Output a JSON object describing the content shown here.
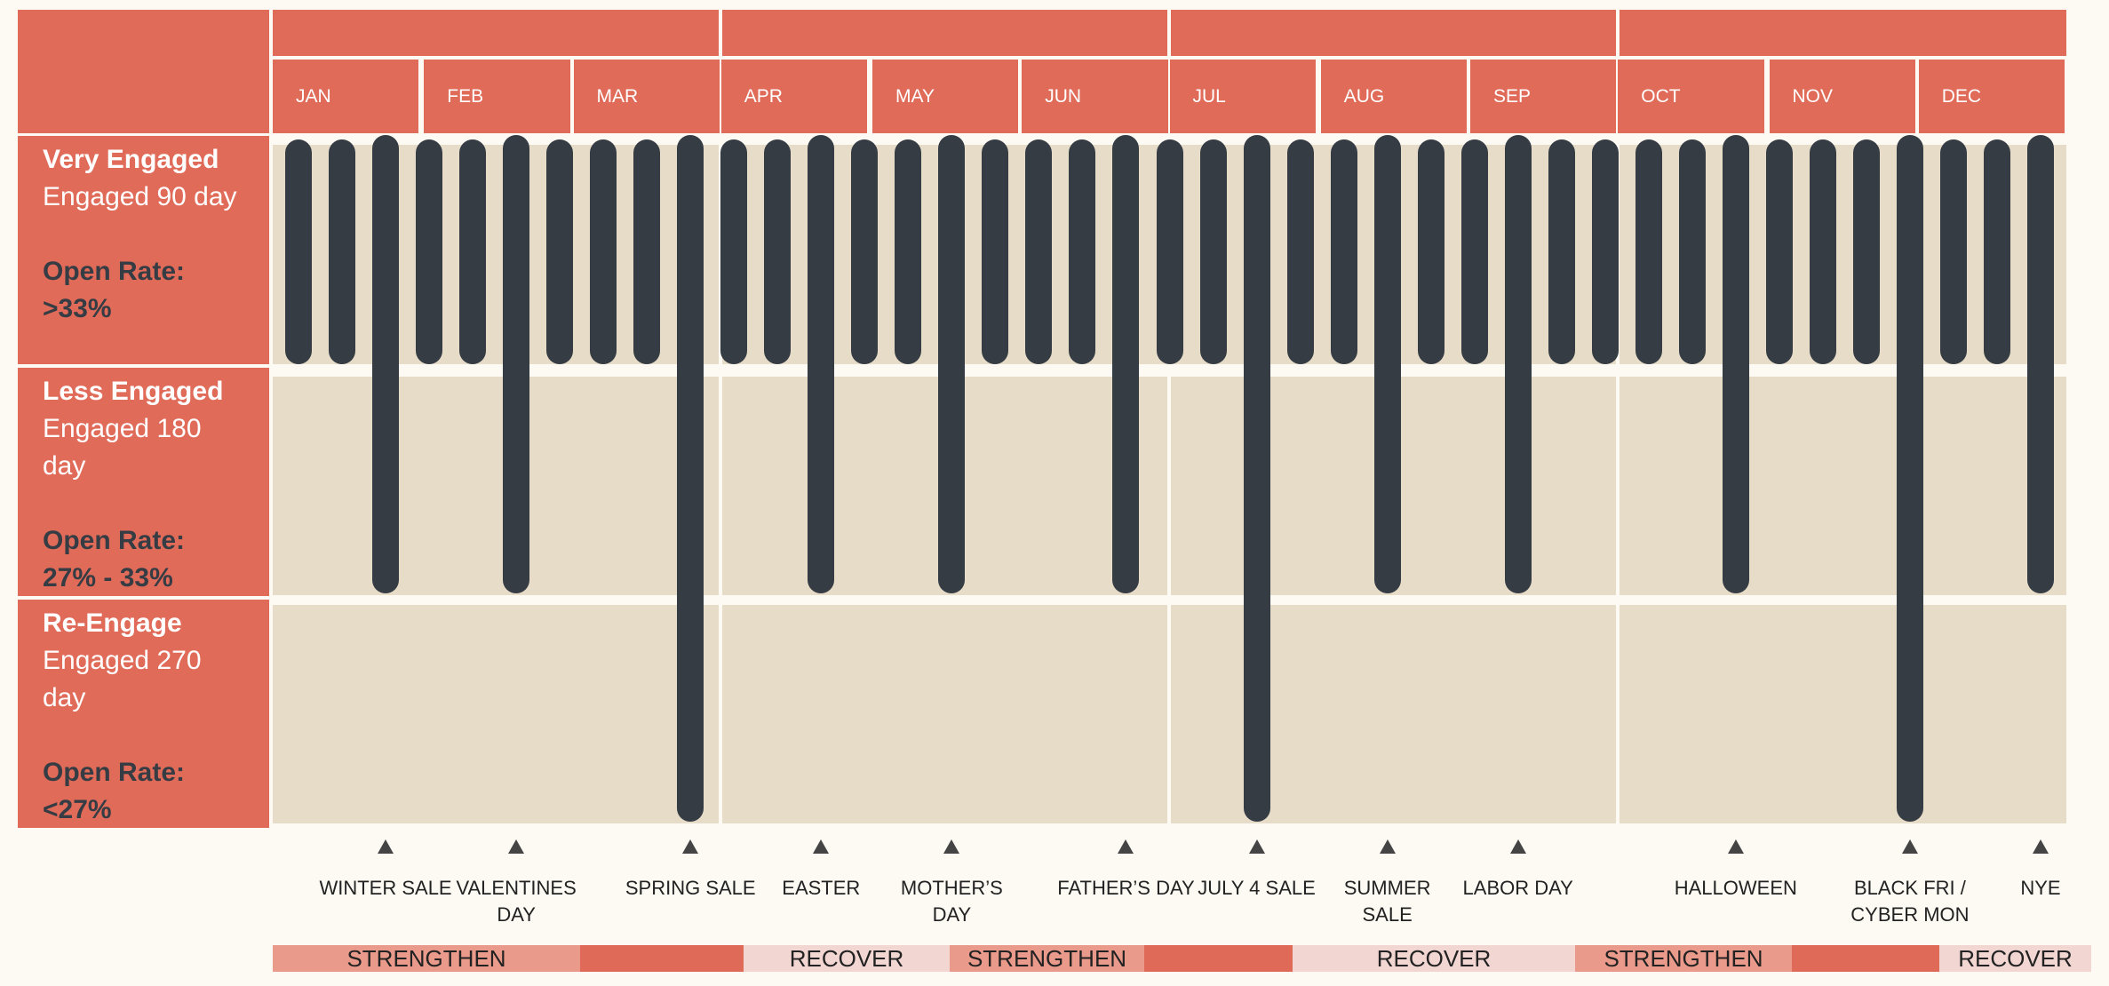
{
  "months": [
    "JAN",
    "FEB",
    "MAR",
    "APR",
    "MAY",
    "JUN",
    "JUL",
    "AUG",
    "SEP",
    "OCT",
    "NOV",
    "DEC"
  ],
  "rows": [
    {
      "title": "Very Engaged",
      "desc": "Engaged 90 day",
      "rate_label": "Open Rate:",
      "rate": ">33%"
    },
    {
      "title": "Less Engaged",
      "desc": "Engaged 180 day",
      "rate_label": "Open Rate:",
      "rate": "27% - 33%"
    },
    {
      "title": "Re-Engage",
      "desc": "Engaged 270 day",
      "rate_label": "Open Rate:",
      "rate": "<27%"
    }
  ],
  "bar_levels": [
    1,
    1,
    2,
    1,
    1,
    2,
    1,
    1,
    1,
    3,
    1,
    1,
    2,
    1,
    1,
    2,
    1,
    1,
    1,
    2,
    1,
    1,
    3,
    1,
    1,
    2,
    1,
    1,
    2,
    1,
    1,
    1,
    1,
    2,
    1,
    1,
    1,
    3,
    1,
    1,
    2
  ],
  "events": [
    {
      "label": "WINTER SALE",
      "bar": 2
    },
    {
      "label": "VALENTINES DAY",
      "bar": 5
    },
    {
      "label": "SPRING SALE",
      "bar": 9
    },
    {
      "label": "EASTER",
      "bar": 12
    },
    {
      "label": "MOTHER’S DAY",
      "bar": 15
    },
    {
      "label": "FATHER’S DAY",
      "bar": 19
    },
    {
      "label": "JULY 4 SALE",
      "bar": 22
    },
    {
      "label": "SUMMER SALE",
      "bar": 25
    },
    {
      "label": "LABOR DAY",
      "bar": 28
    },
    {
      "label": "HALLOWEEN",
      "bar": 33
    },
    {
      "label": "BLACK FRI / CYBER MON",
      "bar": 37
    },
    {
      "label": "NYE",
      "bar": 40
    }
  ],
  "phases": [
    "STRENGTHEN",
    "",
    "RECOVER",
    "STRENGTHEN",
    "",
    "RECOVER",
    "STRENGTHEN",
    "",
    "RECOVER"
  ],
  "colors": {
    "header": "#e06b59",
    "band": "#e6dcc8",
    "bar": "#363c44",
    "strengthen": "#e99a8a",
    "peak": "#e06a58",
    "recover": "#f2d6d2",
    "background": "#fdfaf3"
  }
}
